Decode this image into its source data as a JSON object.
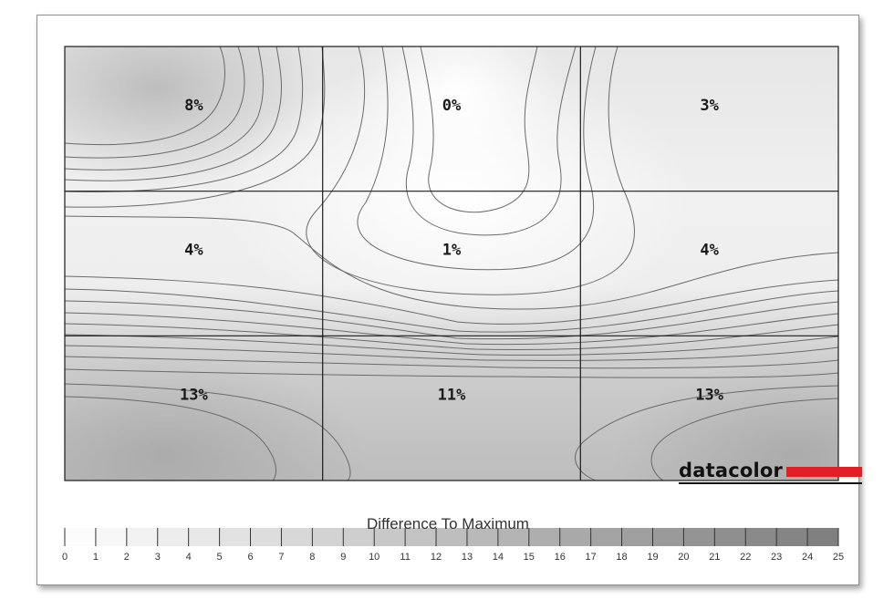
{
  "chart_data": {
    "type": "heatmap",
    "rows": 3,
    "cols": 3,
    "values": [
      [
        "8%",
        "0%",
        "3%"
      ],
      [
        "4%",
        "1%",
        "4%"
      ],
      [
        "13%",
        "11%",
        "13%"
      ]
    ],
    "legend_title": "Difference To Maximum",
    "legend_ticks": [
      "0",
      "1",
      "2",
      "3",
      "4",
      "5",
      "6",
      "7",
      "8",
      "9",
      "10",
      "11",
      "12",
      "13",
      "14",
      "15",
      "16",
      "17",
      "18",
      "19",
      "20",
      "21",
      "22",
      "23",
      "24",
      "25"
    ],
    "legend_range": [
      0,
      25
    ],
    "colors": {
      "low": "#ffffff",
      "high": "#7d7d7d",
      "grid": "#1a1a1a",
      "contour": "#6a6a6a"
    }
  },
  "brand": {
    "name": "datacolor",
    "accent": "#e21f26"
  }
}
